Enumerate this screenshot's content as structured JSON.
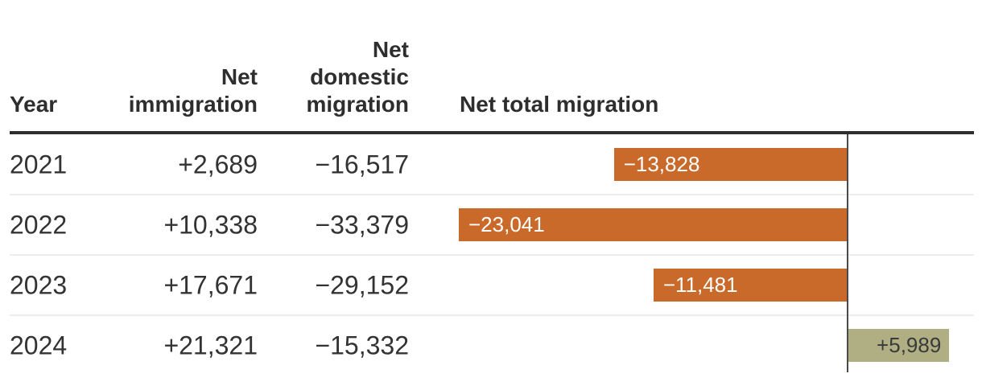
{
  "table": {
    "headers": {
      "year": "Year",
      "net_immigration": "Net\nimmigration",
      "net_domestic": "Net\ndomestic\nmigration",
      "net_total": "Net total migration"
    },
    "rows": [
      {
        "year": "2021",
        "net_immigration": "+2,689",
        "net_domestic": "−16,517",
        "net_total": "−13,828"
      },
      {
        "year": "2022",
        "net_immigration": "+10,338",
        "net_domestic": "−33,379",
        "net_total": "−23,041"
      },
      {
        "year": "2023",
        "net_immigration": "+17,671",
        "net_domestic": "−29,152",
        "net_total": "−11,481"
      },
      {
        "year": "2024",
        "net_immigration": "+21,321",
        "net_domestic": "−15,332",
        "net_total": "+5,989"
      }
    ]
  },
  "chart_data": {
    "type": "bar",
    "orientation": "horizontal",
    "title": "",
    "categories": [
      "2021",
      "2022",
      "2023",
      "2024"
    ],
    "series": [
      {
        "name": "Net immigration",
        "values": [
          2689,
          10338,
          17671,
          21321
        ]
      },
      {
        "name": "Net domestic migration",
        "values": [
          -16517,
          -33379,
          -29152,
          -15332
        ]
      },
      {
        "name": "Net total migration",
        "values": [
          -13828,
          -23041,
          -11481,
          5989
        ]
      }
    ],
    "bar_series": "Net total migration",
    "bar_labels": [
      "−13,828",
      "−23,041",
      "−11,481",
      "+5,989"
    ],
    "xlim": [
      -23100,
      7500
    ],
    "axis_ticks_visible": false,
    "grid": false,
    "legend_position": "none",
    "negative_color": "#c96a2b",
    "positive_color": "#b0ae83",
    "zero_axis_color": "#4a4a4a",
    "header_rule_color": "#2e2e2e",
    "row_separator_color": "#ededed",
    "text_color": "#333333"
  }
}
